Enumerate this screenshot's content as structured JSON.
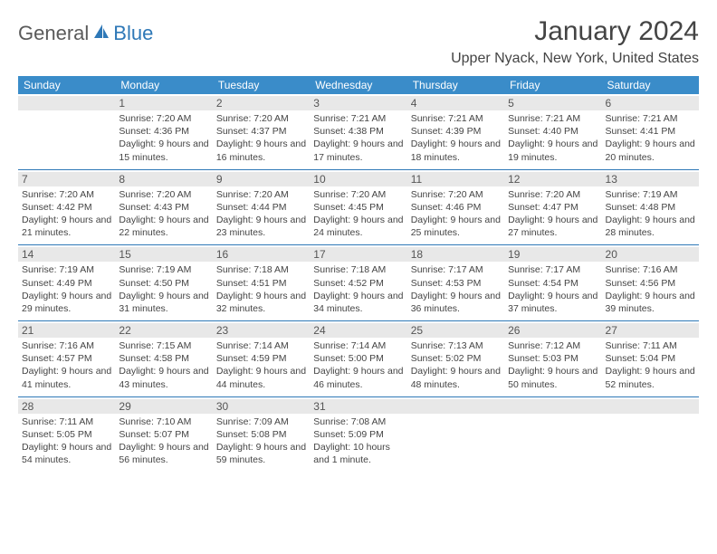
{
  "logo": {
    "part1": "General",
    "part2": "Blue"
  },
  "title": "January 2024",
  "location": "Upper Nyack, New York, United States",
  "colors": {
    "header_bg": "#3a8cc9",
    "border": "#2e78b7",
    "daynum_bg": "#e8e8e8",
    "text": "#444444"
  },
  "dayNames": [
    "Sunday",
    "Monday",
    "Tuesday",
    "Wednesday",
    "Thursday",
    "Friday",
    "Saturday"
  ],
  "weeks": [
    [
      {
        "n": "",
        "sunrise": "",
        "sunset": "",
        "daylight": ""
      },
      {
        "n": "1",
        "sunrise": "Sunrise: 7:20 AM",
        "sunset": "Sunset: 4:36 PM",
        "daylight": "Daylight: 9 hours and 15 minutes."
      },
      {
        "n": "2",
        "sunrise": "Sunrise: 7:20 AM",
        "sunset": "Sunset: 4:37 PM",
        "daylight": "Daylight: 9 hours and 16 minutes."
      },
      {
        "n": "3",
        "sunrise": "Sunrise: 7:21 AM",
        "sunset": "Sunset: 4:38 PM",
        "daylight": "Daylight: 9 hours and 17 minutes."
      },
      {
        "n": "4",
        "sunrise": "Sunrise: 7:21 AM",
        "sunset": "Sunset: 4:39 PM",
        "daylight": "Daylight: 9 hours and 18 minutes."
      },
      {
        "n": "5",
        "sunrise": "Sunrise: 7:21 AM",
        "sunset": "Sunset: 4:40 PM",
        "daylight": "Daylight: 9 hours and 19 minutes."
      },
      {
        "n": "6",
        "sunrise": "Sunrise: 7:21 AM",
        "sunset": "Sunset: 4:41 PM",
        "daylight": "Daylight: 9 hours and 20 minutes."
      }
    ],
    [
      {
        "n": "7",
        "sunrise": "Sunrise: 7:20 AM",
        "sunset": "Sunset: 4:42 PM",
        "daylight": "Daylight: 9 hours and 21 minutes."
      },
      {
        "n": "8",
        "sunrise": "Sunrise: 7:20 AM",
        "sunset": "Sunset: 4:43 PM",
        "daylight": "Daylight: 9 hours and 22 minutes."
      },
      {
        "n": "9",
        "sunrise": "Sunrise: 7:20 AM",
        "sunset": "Sunset: 4:44 PM",
        "daylight": "Daylight: 9 hours and 23 minutes."
      },
      {
        "n": "10",
        "sunrise": "Sunrise: 7:20 AM",
        "sunset": "Sunset: 4:45 PM",
        "daylight": "Daylight: 9 hours and 24 minutes."
      },
      {
        "n": "11",
        "sunrise": "Sunrise: 7:20 AM",
        "sunset": "Sunset: 4:46 PM",
        "daylight": "Daylight: 9 hours and 25 minutes."
      },
      {
        "n": "12",
        "sunrise": "Sunrise: 7:20 AM",
        "sunset": "Sunset: 4:47 PM",
        "daylight": "Daylight: 9 hours and 27 minutes."
      },
      {
        "n": "13",
        "sunrise": "Sunrise: 7:19 AM",
        "sunset": "Sunset: 4:48 PM",
        "daylight": "Daylight: 9 hours and 28 minutes."
      }
    ],
    [
      {
        "n": "14",
        "sunrise": "Sunrise: 7:19 AM",
        "sunset": "Sunset: 4:49 PM",
        "daylight": "Daylight: 9 hours and 29 minutes."
      },
      {
        "n": "15",
        "sunrise": "Sunrise: 7:19 AM",
        "sunset": "Sunset: 4:50 PM",
        "daylight": "Daylight: 9 hours and 31 minutes."
      },
      {
        "n": "16",
        "sunrise": "Sunrise: 7:18 AM",
        "sunset": "Sunset: 4:51 PM",
        "daylight": "Daylight: 9 hours and 32 minutes."
      },
      {
        "n": "17",
        "sunrise": "Sunrise: 7:18 AM",
        "sunset": "Sunset: 4:52 PM",
        "daylight": "Daylight: 9 hours and 34 minutes."
      },
      {
        "n": "18",
        "sunrise": "Sunrise: 7:17 AM",
        "sunset": "Sunset: 4:53 PM",
        "daylight": "Daylight: 9 hours and 36 minutes."
      },
      {
        "n": "19",
        "sunrise": "Sunrise: 7:17 AM",
        "sunset": "Sunset: 4:54 PM",
        "daylight": "Daylight: 9 hours and 37 minutes."
      },
      {
        "n": "20",
        "sunrise": "Sunrise: 7:16 AM",
        "sunset": "Sunset: 4:56 PM",
        "daylight": "Daylight: 9 hours and 39 minutes."
      }
    ],
    [
      {
        "n": "21",
        "sunrise": "Sunrise: 7:16 AM",
        "sunset": "Sunset: 4:57 PM",
        "daylight": "Daylight: 9 hours and 41 minutes."
      },
      {
        "n": "22",
        "sunrise": "Sunrise: 7:15 AM",
        "sunset": "Sunset: 4:58 PM",
        "daylight": "Daylight: 9 hours and 43 minutes."
      },
      {
        "n": "23",
        "sunrise": "Sunrise: 7:14 AM",
        "sunset": "Sunset: 4:59 PM",
        "daylight": "Daylight: 9 hours and 44 minutes."
      },
      {
        "n": "24",
        "sunrise": "Sunrise: 7:14 AM",
        "sunset": "Sunset: 5:00 PM",
        "daylight": "Daylight: 9 hours and 46 minutes."
      },
      {
        "n": "25",
        "sunrise": "Sunrise: 7:13 AM",
        "sunset": "Sunset: 5:02 PM",
        "daylight": "Daylight: 9 hours and 48 minutes."
      },
      {
        "n": "26",
        "sunrise": "Sunrise: 7:12 AM",
        "sunset": "Sunset: 5:03 PM",
        "daylight": "Daylight: 9 hours and 50 minutes."
      },
      {
        "n": "27",
        "sunrise": "Sunrise: 7:11 AM",
        "sunset": "Sunset: 5:04 PM",
        "daylight": "Daylight: 9 hours and 52 minutes."
      }
    ],
    [
      {
        "n": "28",
        "sunrise": "Sunrise: 7:11 AM",
        "sunset": "Sunset: 5:05 PM",
        "daylight": "Daylight: 9 hours and 54 minutes."
      },
      {
        "n": "29",
        "sunrise": "Sunrise: 7:10 AM",
        "sunset": "Sunset: 5:07 PM",
        "daylight": "Daylight: 9 hours and 56 minutes."
      },
      {
        "n": "30",
        "sunrise": "Sunrise: 7:09 AM",
        "sunset": "Sunset: 5:08 PM",
        "daylight": "Daylight: 9 hours and 59 minutes."
      },
      {
        "n": "31",
        "sunrise": "Sunrise: 7:08 AM",
        "sunset": "Sunset: 5:09 PM",
        "daylight": "Daylight: 10 hours and 1 minute."
      },
      {
        "n": "",
        "sunrise": "",
        "sunset": "",
        "daylight": ""
      },
      {
        "n": "",
        "sunrise": "",
        "sunset": "",
        "daylight": ""
      },
      {
        "n": "",
        "sunrise": "",
        "sunset": "",
        "daylight": ""
      }
    ]
  ]
}
